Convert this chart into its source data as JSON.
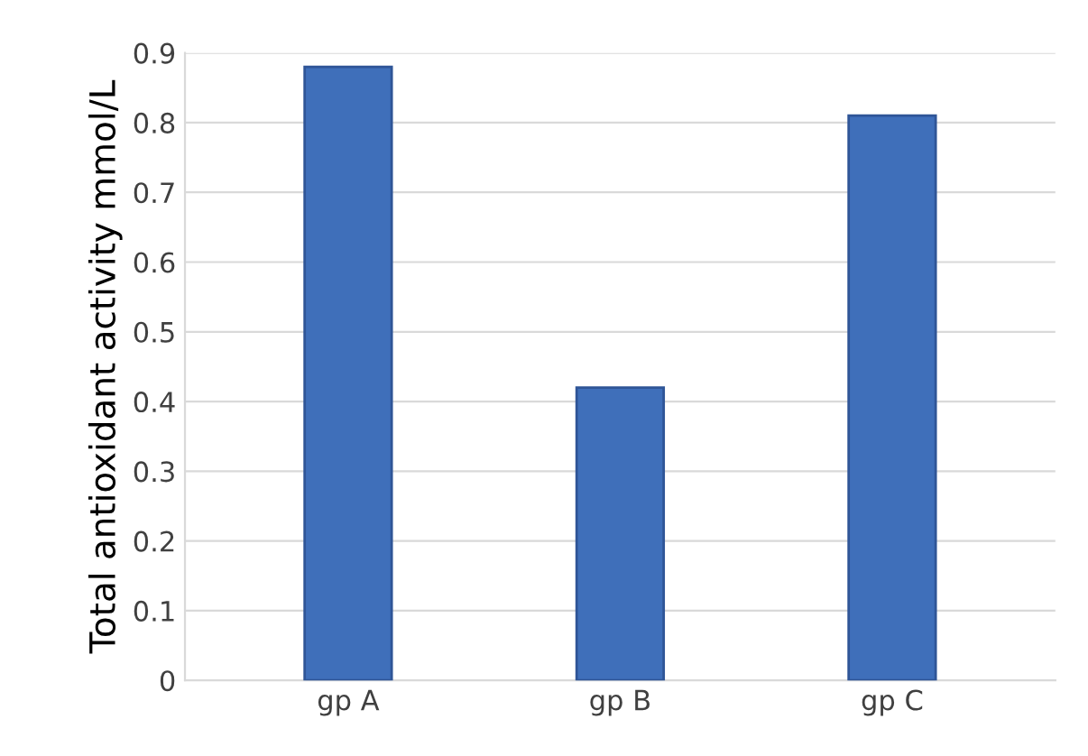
{
  "chart_data": {
    "type": "bar",
    "ylabel": "Total antioxidant activity mmol/L",
    "categories": [
      "gp A",
      "gp B",
      "gp C"
    ],
    "values": [
      0.88,
      0.42,
      0.81
    ],
    "color": "#3f6fba",
    "ylim": [
      0,
      0.9
    ],
    "yticks": [
      0,
      0.1,
      0.2,
      0.3,
      0.4,
      0.5,
      0.6,
      0.7,
      0.8,
      0.9
    ],
    "grid": "y"
  }
}
